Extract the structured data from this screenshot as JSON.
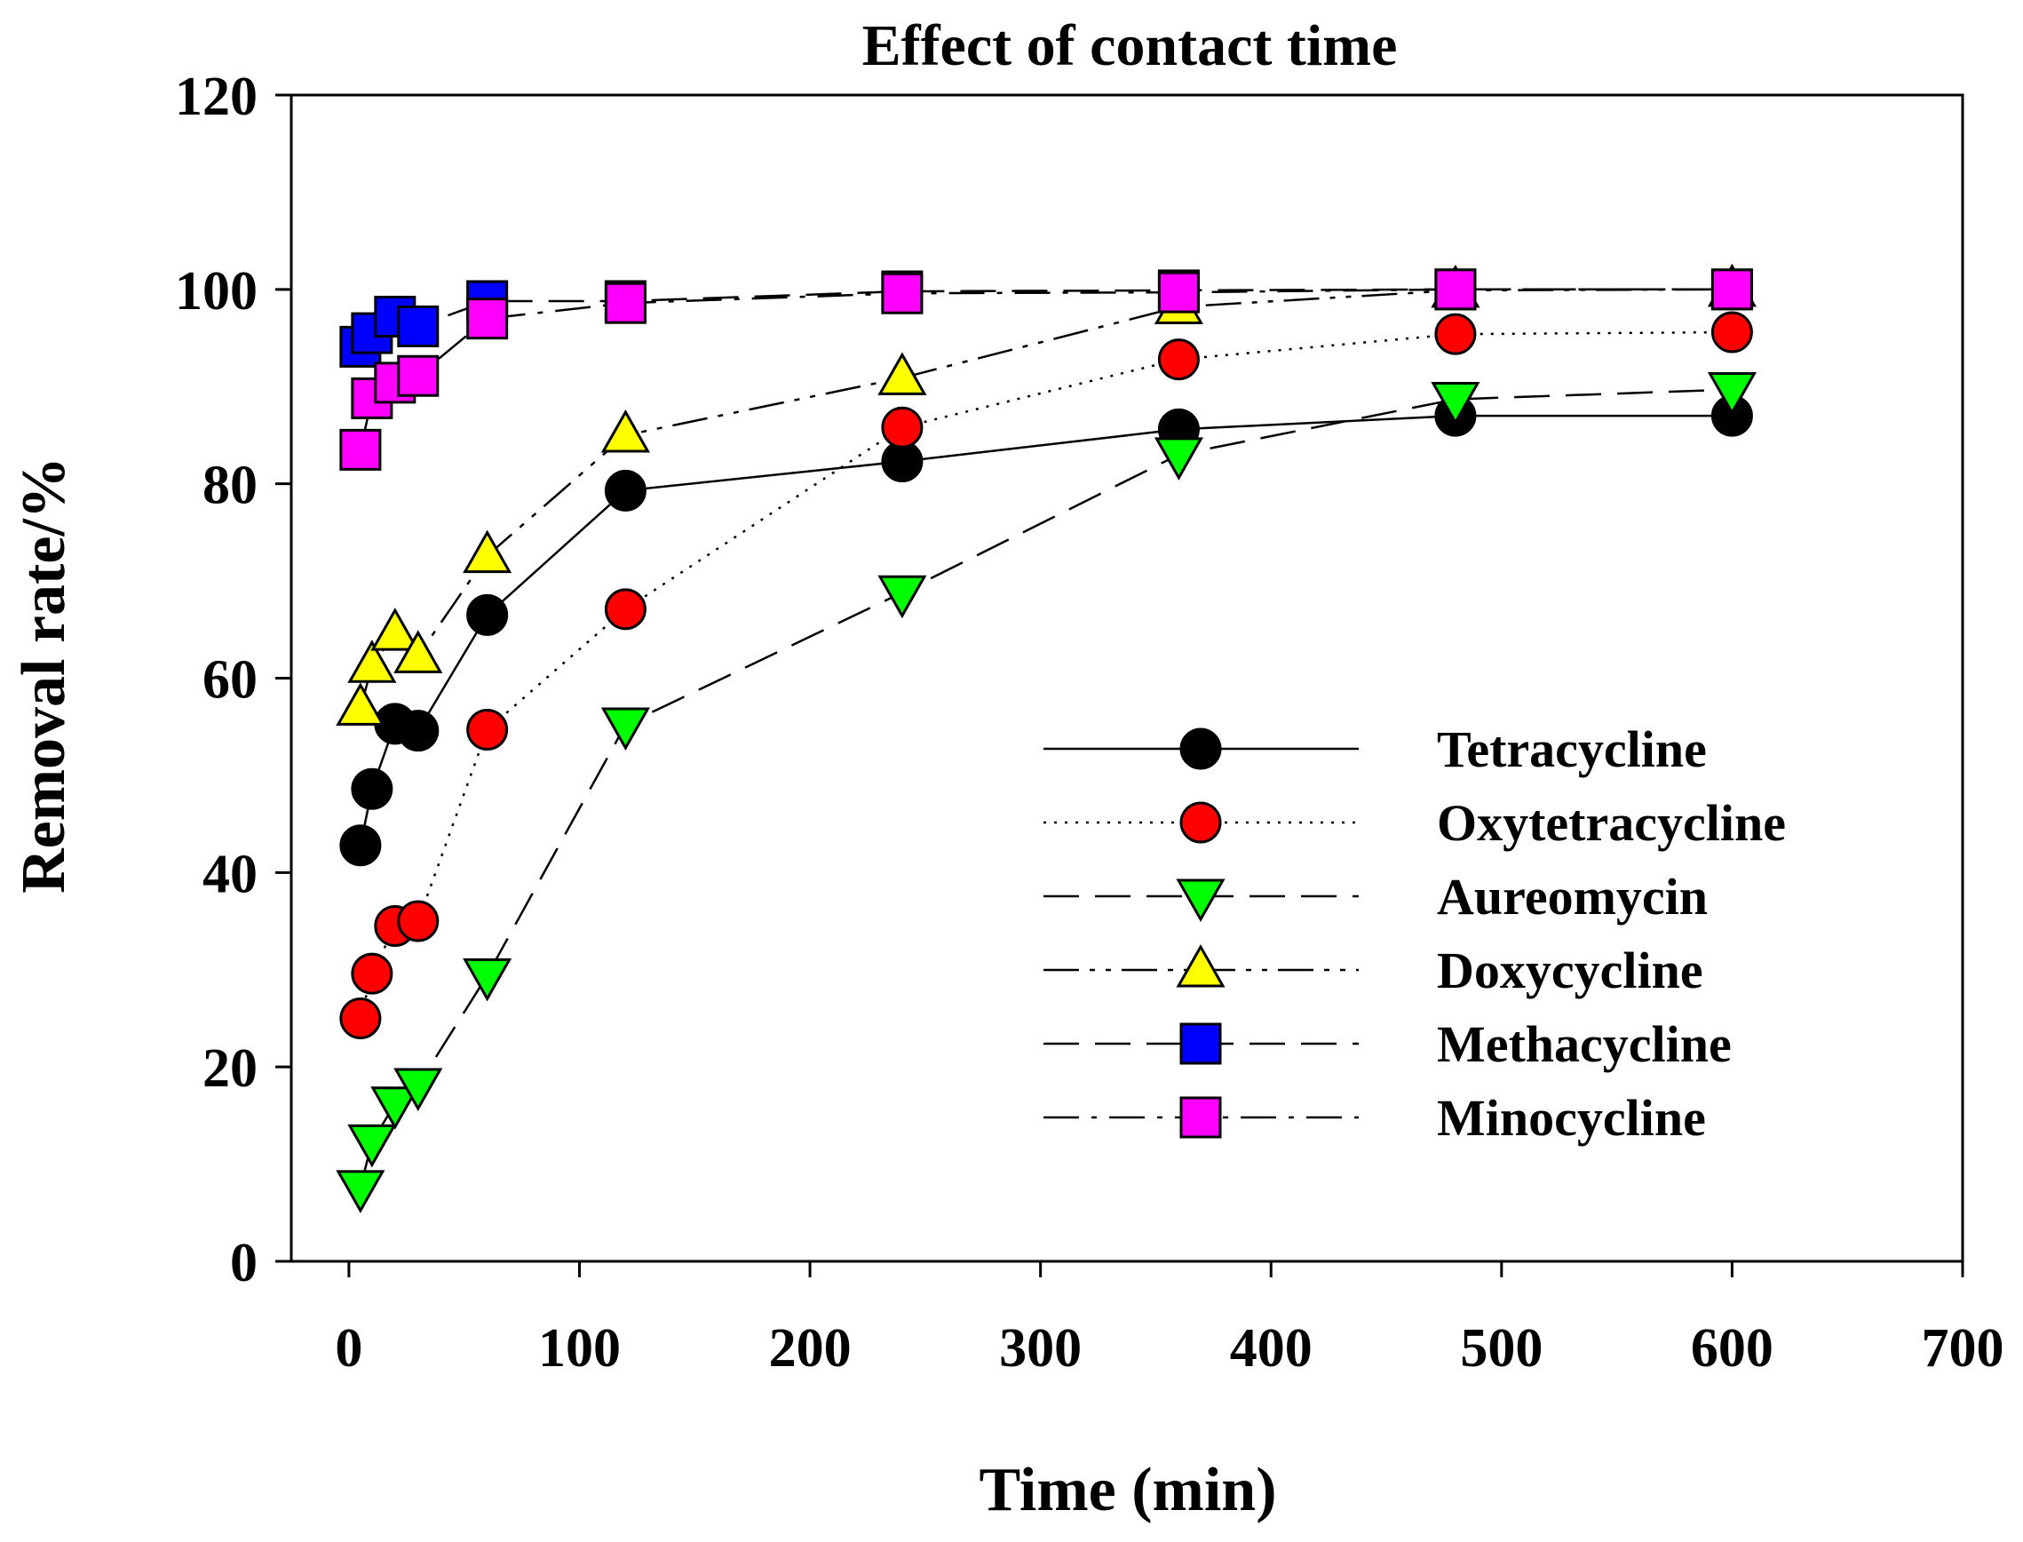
{
  "chart_data": {
    "type": "line",
    "title": "Effect of contact time",
    "xlabel": "Time (min)",
    "ylabel": "Removal rate/%",
    "xlim": [
      -25,
      700
    ],
    "ylim": [
      0,
      120
    ],
    "xticks": [
      0,
      100,
      200,
      300,
      400,
      500,
      600,
      700
    ],
    "yticks": [
      0,
      20,
      40,
      60,
      80,
      100,
      120
    ],
    "grid": false,
    "legend_position": "center-right",
    "series": [
      {
        "name": "Tetracycline",
        "marker": "circle",
        "color": "#000000",
        "line_style": "solid",
        "x": [
          5,
          10,
          20,
          30,
          60,
          120,
          240,
          360,
          480,
          600
        ],
        "y": [
          42.8,
          48.6,
          55.3,
          54.6,
          66.5,
          79.3,
          82.3,
          85.6,
          87.0,
          87.0
        ]
      },
      {
        "name": "Oxytetracycline",
        "marker": "circle",
        "color": "#ff0000",
        "line_style": "dotted",
        "x": [
          5,
          10,
          20,
          30,
          60,
          120,
          240,
          360,
          480,
          600
        ],
        "y": [
          25.0,
          29.6,
          34.5,
          35.0,
          54.7,
          67.1,
          85.8,
          92.8,
          95.4,
          95.6
        ]
      },
      {
        "name": "Aureomycin",
        "marker": "triangle-down",
        "color": "#00ff00",
        "line_style": "long-dash",
        "x": [
          5,
          10,
          20,
          30,
          60,
          120,
          240,
          360,
          480,
          600
        ],
        "y": [
          7.6,
          12.3,
          16.2,
          18.1,
          29.4,
          55.2,
          68.8,
          83.0,
          88.7,
          89.7
        ]
      },
      {
        "name": "Doxycycline",
        "marker": "triangle-up",
        "color": "#ffff00",
        "line_style": "dash-dot-dot",
        "x": [
          5,
          10,
          20,
          30,
          60,
          120,
          240,
          360,
          480,
          600
        ],
        "y": [
          56.9,
          61.3,
          64.6,
          62.3,
          72.6,
          85.0,
          90.9,
          98.2,
          99.9,
          100.0
        ]
      },
      {
        "name": "Methacycline",
        "marker": "square",
        "color": "#0000ff",
        "line_style": "long-dash",
        "x": [
          5,
          10,
          20,
          30,
          60,
          120,
          240,
          360,
          480,
          600
        ],
        "y": [
          94.1,
          95.5,
          97.2,
          96.2,
          98.8,
          98.8,
          99.8,
          99.9,
          100.0,
          100.0
        ]
      },
      {
        "name": "Minocycline",
        "marker": "square",
        "color": "#ff00ff",
        "line_style": "dash-dot",
        "x": [
          5,
          10,
          20,
          30,
          60,
          120,
          240,
          360,
          480,
          600
        ],
        "y": [
          83.5,
          88.8,
          90.4,
          91.1,
          97.0,
          98.6,
          99.6,
          99.7,
          100.0,
          100.0
        ]
      }
    ]
  }
}
